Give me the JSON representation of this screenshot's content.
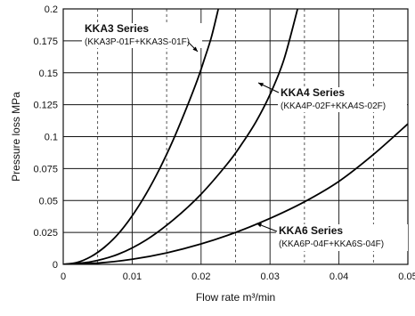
{
  "chart_data": {
    "type": "line",
    "title": "",
    "xlabel": "Flow rate m³/min",
    "ylabel": "Pressure loss MPa",
    "xlim": [
      0,
      0.05
    ],
    "ylim": [
      0,
      0.2
    ],
    "x_ticks": [
      "0",
      "0.01",
      "0.02",
      "0.03",
      "0.04",
      "0.05"
    ],
    "y_ticks": [
      "0",
      "0.025",
      "0.05",
      "0.075",
      "0.1",
      "0.125",
      "0.15",
      "0.175",
      "0.2"
    ],
    "grid": {
      "x_major": true,
      "y_major": true,
      "x_minor_dashed": true
    },
    "series": [
      {
        "name": "KKA3 Series",
        "subtitle": "(KKA3P-01F+KKA3S-01F)",
        "x": [
          0,
          0.002,
          0.004,
          0.006,
          0.008,
          0.01,
          0.012,
          0.014,
          0.016,
          0.018,
          0.0195,
          0.0205,
          0.0215,
          0.0225
        ],
        "y": [
          0,
          0.0015,
          0.006,
          0.0135,
          0.024,
          0.038,
          0.055,
          0.075,
          0.098,
          0.124,
          0.145,
          0.161,
          0.178,
          0.2
        ]
      },
      {
        "name": "KKA4 Series",
        "subtitle": "(KKA4P-02F+KKA4S-02F)",
        "x": [
          0,
          0.004,
          0.008,
          0.012,
          0.016,
          0.02,
          0.024,
          0.026,
          0.028,
          0.03,
          0.032,
          0.034
        ],
        "y": [
          0,
          0.002,
          0.008,
          0.019,
          0.035,
          0.055,
          0.08,
          0.095,
          0.112,
          0.133,
          0.16,
          0.2
        ]
      },
      {
        "name": "KKA6 Series",
        "subtitle": "(KKA6P-04F+KKA6S-04F)",
        "x": [
          0,
          0.005,
          0.01,
          0.015,
          0.02,
          0.025,
          0.03,
          0.035,
          0.04,
          0.045,
          0.05
        ],
        "y": [
          0,
          0.001,
          0.004,
          0.009,
          0.016,
          0.025,
          0.036,
          0.049,
          0.065,
          0.086,
          0.11
        ]
      }
    ]
  }
}
